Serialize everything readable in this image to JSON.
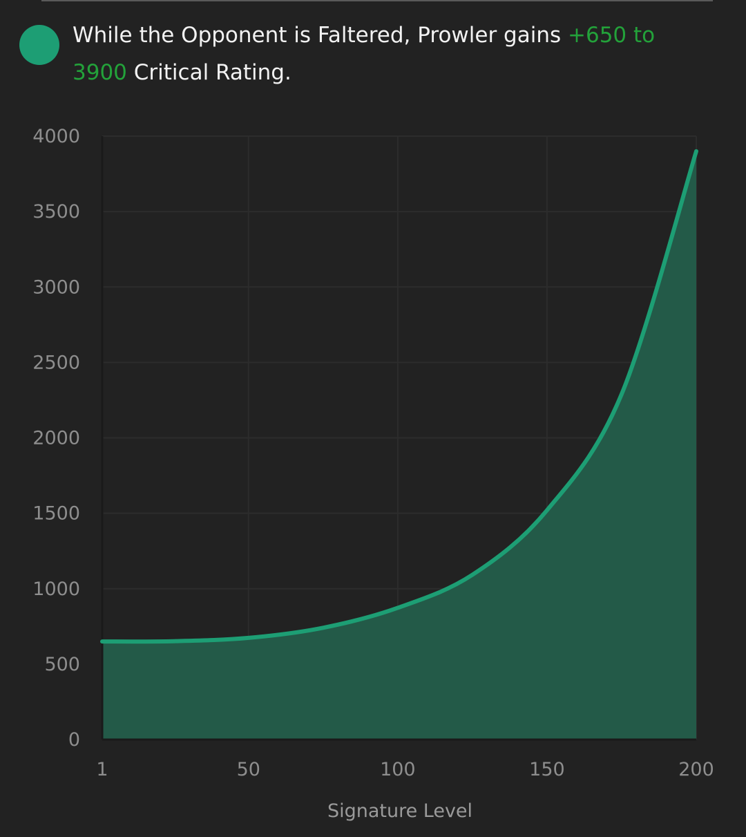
{
  "colors": {
    "background": "#222222",
    "series": "#1d9e74",
    "fill": "#235a48",
    "highlight": "#23a23a",
    "grid": "#2c2c2c"
  },
  "description": {
    "prefix": "While the Opponent is Faltered, Prowler gains ",
    "highlight": "+650 to 3900",
    "suffix": " Critical Rating."
  },
  "chart_data": {
    "type": "area",
    "title": "",
    "xlabel": "Signature Level",
    "ylabel": "",
    "xlim": [
      1,
      200
    ],
    "ylim": [
      0,
      4000
    ],
    "x_ticks": [
      "1",
      "50",
      "100",
      "150",
      "200"
    ],
    "y_ticks": [
      "0",
      "500",
      "1000",
      "1500",
      "2000",
      "2500",
      "3000",
      "3500",
      "4000"
    ],
    "grid": true,
    "legend": "none",
    "series": [
      {
        "x": [
          1,
          25,
          50,
          75,
          100,
          125,
          150,
          175,
          200
        ],
        "values": [
          650,
          652,
          674,
          741,
          873,
          1092,
          1520,
          2290,
          3900
        ]
      }
    ]
  }
}
